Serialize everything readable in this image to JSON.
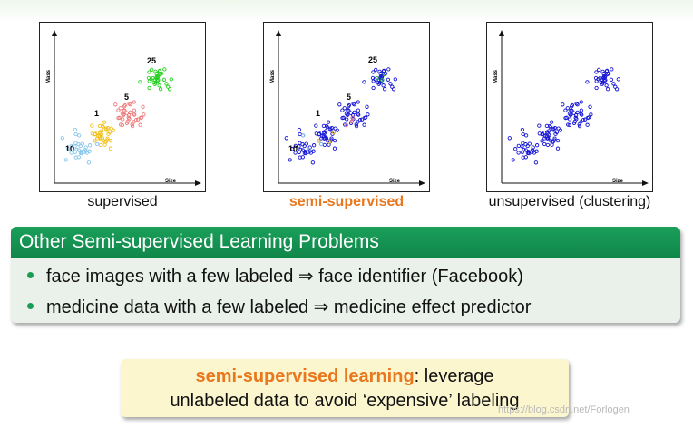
{
  "panels": [
    {
      "caption": "supervised",
      "ylabel": "Mass",
      "xlabel": "Size",
      "labels": [
        "25",
        "1",
        "5",
        "10"
      ]
    },
    {
      "caption": "semi-supervised",
      "ylabel": "Mass",
      "xlabel": "Size",
      "labels": [
        "25",
        "1",
        "5",
        "10"
      ]
    },
    {
      "caption": "unsupervised (clustering)",
      "ylabel": "Mass",
      "xlabel": "Size",
      "labels": []
    }
  ],
  "colors": {
    "cluster_25": "#23d01f",
    "cluster_5": "#f07a7a",
    "cluster_1": "#f2c01a",
    "cluster_10": "#87c6ea",
    "unlabeled": "#1717d6",
    "accent_orange": "#e8771e",
    "block_header": "#1a9f5a",
    "block_body": "#e9f1ea",
    "callout_bg": "#fcf6cf"
  },
  "block": {
    "title": "Other Semi-supervised Learning Problems",
    "items": [
      "face images with a few labeled ⇒ face identifier (Facebook)",
      "medicine data with a few labeled ⇒ medicine effect predictor"
    ]
  },
  "callout": {
    "highlight": "semi-supervised learning",
    "rest1": ": leverage",
    "line2": "unlabeled data to avoid ‘expensive’ labeling"
  },
  "watermark": "https://blog.csdn.net/Forlogen"
}
